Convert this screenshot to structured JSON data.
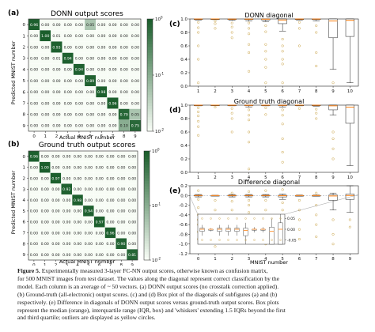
{
  "panels": {
    "a": {
      "label": "(a)",
      "title": "DONN output scores",
      "xlabel": "Actual MNIST number",
      "ylabel": "Predicted MNIST number"
    },
    "b": {
      "label": "(b)",
      "title": "Ground truth output scores",
      "xlabel": "Actual MNIST number",
      "ylabel": "Predicted MNIST number"
    },
    "c": {
      "label": "(c)",
      "title": "DONN diagonal"
    },
    "d": {
      "label": "(d)",
      "title": "Ground truth diagonal"
    },
    "e": {
      "label": "(e)",
      "title": "Difference diagonal",
      "xlabel": "MNIST number"
    }
  },
  "colors": {
    "heat_low": "#f7fcf5",
    "heat_high": "#1b5e2c",
    "median": "#ff7f0e",
    "outlier": "#c8a040",
    "axis": "#222222"
  },
  "caption": {
    "figure_label": "Figure 5.",
    "lines": [
      "Experimentally measured 3-layer FC-NN output scores, otherwise known as confusion matrix,",
      "for 500 MNIST images from test dataset. The values along the diagonal represent correct classification by the",
      "model. Each column is an average of ~ 50 vectors. (a) DONN output scores (no crosstalk correction applied).",
      "(b) Ground-truth (all-electronic) output scores. (c) and (d) Box plot of the diagonals of subfigures (a) and (b)",
      "respectively. (e) Difference in diagonals of DONN output scores versus ground-truth output scores. Box plots",
      "represent the median (orange), interquartile range (IQR, box) and 'whiskers' extending 1.5 IQRs beyond the first",
      "and third quartile; outliers are displayed as yellow circles."
    ]
  },
  "chart_data": [
    {
      "type": "heatmap",
      "id": "a",
      "title": "DONN output scores",
      "xlabel": "Actual MNIST number",
      "ylabel": "Predicted MNIST number",
      "x_ticks": [
        "0",
        "1",
        "2",
        "3",
        "4",
        "5",
        "6",
        "7",
        "8",
        "9"
      ],
      "y_ticks": [
        "0",
        "1",
        "2",
        "3",
        "4",
        "5",
        "6",
        "7",
        "8",
        "9"
      ],
      "colorbar": {
        "scale": "log",
        "ticks": [
          "10^0",
          "10^-1",
          "10^-2"
        ]
      },
      "values": [
        [
          "0.96",
          "0.00",
          "0.00",
          "0.00",
          "0.00",
          "0.05",
          "0.00",
          "0.00",
          "0.00",
          "0.00"
        ],
        [
          "0.00",
          "1.00",
          "0.01",
          "0.00",
          "0.00",
          "0.00",
          "0.00",
          "0.00",
          "0.00",
          "0.00"
        ],
        [
          "0.00",
          "0.00",
          "0.93",
          "0.00",
          "0.00",
          "0.00",
          "0.00",
          "0.00",
          "0.00",
          "0.00"
        ],
        [
          "0.00",
          "0.00",
          "0.01",
          "0.94",
          "0.00",
          "0.00",
          "0.00",
          "0.00",
          "0.00",
          "0.00"
        ],
        [
          "0.00",
          "0.00",
          "0.00",
          "0.00",
          "0.94",
          "0.00",
          "0.00",
          "0.00",
          "0.00",
          "0.00"
        ],
        [
          "0.00",
          "0.00",
          "0.00",
          "0.00",
          "0.00",
          "0.89",
          "0.00",
          "0.00",
          "0.00",
          "0.00"
        ],
        [
          "0.00",
          "0.00",
          "0.00",
          "0.00",
          "0.00",
          "0.00",
          "0.98",
          "0.00",
          "0.00",
          "0.00"
        ],
        [
          "0.00",
          "0.00",
          "0.00",
          "0.00",
          "0.00",
          "0.00",
          "0.00",
          "0.96",
          "0.00",
          "0.00"
        ],
        [
          "0.00",
          "0.00",
          "0.00",
          "0.00",
          "0.00",
          "0.00",
          "0.00",
          "0.00",
          "0.79",
          "0.05"
        ],
        [
          "0.00",
          "0.00",
          "0.00",
          "0.00",
          "0.00",
          "0.00",
          "0.00",
          "0.00",
          "0.10",
          "0.75"
        ]
      ]
    },
    {
      "type": "heatmap",
      "id": "b",
      "title": "Ground truth output scores",
      "xlabel": "Actual MNIST number",
      "ylabel": "Predicted MNIST number",
      "x_ticks": [
        "0",
        "1",
        "2",
        "3",
        "4",
        "5",
        "6",
        "7",
        "8",
        "9"
      ],
      "y_ticks": [
        "0",
        "1",
        "2",
        "3",
        "4",
        "5",
        "6",
        "7",
        "8",
        "9"
      ],
      "colorbar": {
        "scale": "log",
        "ticks": [
          "10^0",
          "10^-1",
          "10^-2"
        ]
      },
      "values": [
        [
          "0.96",
          "0.00",
          "0.00",
          "0.00",
          "0.00",
          "0.00",
          "0.00",
          "0.00",
          "0.00",
          "0.00"
        ],
        [
          "0.00",
          "1.00",
          "0.00",
          "0.00",
          "0.00",
          "0.00",
          "0.00",
          "0.00",
          "0.00",
          "0.00"
        ],
        [
          "0.00",
          "0.00",
          "0.97",
          "0.00",
          "0.00",
          "0.00",
          "0.00",
          "0.00",
          "0.00",
          "0.00"
        ],
        [
          "0.00",
          "0.00",
          "0.00",
          "0.92",
          "0.00",
          "0.00",
          "0.00",
          "0.00",
          "0.00",
          "0.00"
        ],
        [
          "0.00",
          "0.00",
          "0.00",
          "0.00",
          "0.98",
          "0.00",
          "0.00",
          "0.00",
          "0.00",
          "0.00"
        ],
        [
          "0.00",
          "0.00",
          "0.00",
          "0.00",
          "0.00",
          "0.94",
          "0.00",
          "0.00",
          "0.00",
          "0.00"
        ],
        [
          "0.00",
          "0.00",
          "0.00",
          "0.00",
          "0.00",
          "0.00",
          "0.97",
          "0.00",
          "0.00",
          "0.00"
        ],
        [
          "0.00",
          "0.00",
          "0.00",
          "0.00",
          "0.00",
          "0.00",
          "0.00",
          "0.96",
          "0.00",
          "0.00"
        ],
        [
          "0.00",
          "0.00",
          "0.00",
          "0.00",
          "0.00",
          "0.00",
          "0.00",
          "0.00",
          "0.90",
          "0.00"
        ],
        [
          "0.00",
          "0.00",
          "0.00",
          "0.00",
          "0.00",
          "0.00",
          "0.00",
          "0.00",
          "0.00",
          "0.81"
        ]
      ]
    },
    {
      "type": "box",
      "id": "c",
      "title": "DONN diagonal",
      "x_ticks": [
        "1",
        "2",
        "3",
        "4",
        "5",
        "6",
        "7",
        "8",
        "9",
        "10"
      ],
      "ylim": [
        0.0,
        1.0
      ],
      "y_ticks": [
        "0.0",
        "0.2",
        "0.4",
        "0.6",
        "0.8",
        "1.0"
      ],
      "boxes": [
        {
          "x": 1,
          "q1": 0.995,
          "median": 0.999,
          "q3": 1.0,
          "wlo": 0.985,
          "whi": 1.0,
          "outliers": [
            0.95,
            0.87,
            0.8,
            0.6,
            0.4,
            0.05
          ]
        },
        {
          "x": 2,
          "q1": 0.998,
          "median": 1.0,
          "q3": 1.0,
          "wlo": 0.99,
          "whi": 1.0,
          "outliers": [
            0.97,
            0.93,
            0.86
          ]
        },
        {
          "x": 3,
          "q1": 0.99,
          "median": 0.998,
          "q3": 1.0,
          "wlo": 0.98,
          "whi": 1.0,
          "outliers": [
            0.94,
            0.88,
            0.8,
            0.72
          ]
        },
        {
          "x": 4,
          "q1": 0.99,
          "median": 0.998,
          "q3": 1.0,
          "wlo": 0.97,
          "whi": 1.0,
          "outliers": [
            0.94,
            0.86,
            0.78,
            0.62,
            0.5,
            0.22
          ]
        },
        {
          "x": 5,
          "q1": 0.985,
          "median": 0.997,
          "q3": 1.0,
          "wlo": 0.96,
          "whi": 1.0,
          "outliers": [
            0.9,
            0.81,
            0.62,
            0.52,
            0.4,
            0.28,
            0.05
          ]
        },
        {
          "x": 6,
          "q1": 0.93,
          "median": 0.985,
          "q3": 1.0,
          "wlo": 0.82,
          "whi": 1.0,
          "outliers": [
            0.7,
            0.6,
            0.52,
            0.4,
            0.33,
            0.05
          ]
        },
        {
          "x": 7,
          "q1": 0.995,
          "median": 0.999,
          "q3": 1.0,
          "wlo": 0.985,
          "whi": 1.0,
          "outliers": [
            0.95,
            0.86,
            0.6
          ]
        },
        {
          "x": 8,
          "q1": 0.99,
          "median": 0.999,
          "q3": 1.0,
          "wlo": 0.97,
          "whi": 1.0,
          "outliers": [
            0.9,
            0.8,
            0.5,
            0.3
          ]
        },
        {
          "x": 9,
          "q1": 0.72,
          "median": 0.97,
          "q3": 1.0,
          "wlo": 0.25,
          "whi": 1.0,
          "outliers": [
            0.05
          ]
        },
        {
          "x": 10,
          "q1": 0.74,
          "median": 0.98,
          "q3": 1.0,
          "wlo": 0.05,
          "whi": 1.0,
          "outliers": []
        }
      ]
    },
    {
      "type": "box",
      "id": "d",
      "title": "Ground truth diagonal",
      "x_ticks": [
        "1",
        "2",
        "3",
        "4",
        "5",
        "6",
        "7",
        "8",
        "9",
        "10"
      ],
      "ylim": [
        0.0,
        1.0
      ],
      "y_ticks": [
        "0.0",
        "0.2",
        "0.4",
        "0.6",
        "0.8",
        "1.0"
      ],
      "boxes": [
        {
          "x": 1,
          "q1": 0.997,
          "median": 0.999,
          "q3": 1.0,
          "wlo": 0.99,
          "whi": 1.0,
          "outliers": [
            0.96,
            0.9,
            0.84,
            0.76,
            0.68,
            0.55
          ]
        },
        {
          "x": 2,
          "q1": 0.999,
          "median": 1.0,
          "q3": 1.0,
          "wlo": 0.995,
          "whi": 1.0,
          "outliers": [
            0.97
          ]
        },
        {
          "x": 3,
          "q1": 0.997,
          "median": 0.999,
          "q3": 1.0,
          "wlo": 0.99,
          "whi": 1.0,
          "outliers": [
            0.95,
            0.88,
            0.8,
            0.6
          ]
        },
        {
          "x": 4,
          "q1": 0.99,
          "median": 0.998,
          "q3": 1.0,
          "wlo": 0.97,
          "whi": 1.0,
          "outliers": [
            0.93,
            0.85,
            0.78,
            0.6,
            0.45,
            0.05
          ]
        },
        {
          "x": 5,
          "q1": 0.997,
          "median": 0.999,
          "q3": 1.0,
          "wlo": 0.99,
          "whi": 1.0,
          "outliers": [
            0.96,
            0.86
          ]
        },
        {
          "x": 6,
          "q1": 0.99,
          "median": 0.998,
          "q3": 1.0,
          "wlo": 0.97,
          "whi": 1.0,
          "outliers": [
            0.93,
            0.85,
            0.72,
            0.5,
            0.3,
            0.15
          ]
        },
        {
          "x": 7,
          "q1": 0.998,
          "median": 1.0,
          "q3": 1.0,
          "wlo": 0.99,
          "whi": 1.0,
          "outliers": [
            0.95
          ]
        },
        {
          "x": 8,
          "q1": 0.995,
          "median": 0.999,
          "q3": 1.0,
          "wlo": 0.985,
          "whi": 1.0,
          "outliers": [
            0.94,
            0.88,
            0.8
          ]
        },
        {
          "x": 9,
          "q1": 0.93,
          "median": 0.99,
          "q3": 1.0,
          "wlo": 0.85,
          "whi": 1.0,
          "outliers": [
            0.6,
            0.5,
            0.35,
            0.2
          ]
        },
        {
          "x": 10,
          "q1": 0.73,
          "median": 0.97,
          "q3": 1.0,
          "wlo": 0.1,
          "whi": 1.0,
          "outliers": []
        }
      ]
    },
    {
      "type": "box",
      "id": "e",
      "title": "Difference diagonal",
      "xlabel": "MNIST number",
      "x_ticks": [
        "0",
        "1",
        "2",
        "3",
        "4",
        "5",
        "6",
        "7",
        "8",
        "9"
      ],
      "ylim": [
        -1.2,
        0.2
      ],
      "y_ticks": [
        "0.2",
        "0.0",
        "-0.2",
        "-0.4",
        "-0.6",
        "-0.8",
        "-1.0",
        "-1.2"
      ],
      "boxes": [
        {
          "x": 0,
          "q1": -0.01,
          "median": 0.0,
          "q3": 0.005,
          "wlo": -0.03,
          "whi": 0.02,
          "outliers": [
            0.1,
            -0.08,
            -0.25,
            -0.4,
            -0.5,
            -0.6,
            -0.75,
            -0.9
          ]
        },
        {
          "x": 1,
          "q1": -0.005,
          "median": 0.0,
          "q3": 0.0,
          "wlo": -0.01,
          "whi": 0.005,
          "outliers": [
            -0.1,
            -0.3,
            -0.45,
            -0.55,
            -0.7,
            -0.8,
            -0.95,
            -1.05
          ]
        },
        {
          "x": 2,
          "q1": -0.01,
          "median": 0.0,
          "q3": 0.005,
          "wlo": -0.03,
          "whi": 0.02,
          "outliers": [
            0.05,
            -0.12,
            -0.3,
            -0.5,
            -0.65,
            -0.8,
            -0.95
          ]
        },
        {
          "x": 3,
          "q1": -0.01,
          "median": 0.0,
          "q3": 0.005,
          "wlo": -0.03,
          "whi": 0.02,
          "outliers": [
            0.08,
            -0.1,
            -0.2,
            -0.35,
            -0.55,
            -0.7,
            -0.9
          ]
        },
        {
          "x": 4,
          "q1": -0.01,
          "median": 0.0,
          "q3": 0.005,
          "wlo": -0.03,
          "whi": 0.02,
          "outliers": [
            0.1,
            -0.1,
            -0.3,
            -0.45,
            -0.65,
            -0.8,
            -1.0
          ]
        },
        {
          "x": 5,
          "q1": -0.03,
          "median": -0.005,
          "q3": 0.005,
          "wlo": -0.08,
          "whi": 0.03,
          "outliers": [
            0.12,
            -0.15,
            -0.3,
            -0.5,
            -0.6,
            -0.8,
            -0.95
          ]
        },
        {
          "x": 6,
          "q1": -0.005,
          "median": 0.0,
          "q3": 0.0,
          "wlo": -0.015,
          "whi": 0.01,
          "outliers": [
            -0.1,
            -0.3,
            -0.5,
            -0.7,
            -0.9
          ]
        },
        {
          "x": 7,
          "q1": -0.005,
          "median": 0.0,
          "q3": 0.0,
          "wlo": -0.015,
          "whi": 0.01,
          "outliers": [
            0.05,
            -0.2,
            -0.4,
            -0.6,
            -0.85
          ]
        },
        {
          "x": 8,
          "q1": -0.1,
          "median": -0.01,
          "q3": 0.01,
          "wlo": -0.3,
          "whi": 0.05,
          "outliers": [
            -0.5,
            -0.8,
            -1.0
          ]
        },
        {
          "x": 9,
          "q1": -0.08,
          "median": 0.0,
          "q3": 0.03,
          "wlo": -0.35,
          "whi": 0.2,
          "outliers": [
            -0.5,
            -0.65
          ]
        }
      ],
      "inset": {
        "y_ticks": [
          "0.05",
          "0.00",
          "-0.05"
        ]
      }
    }
  ]
}
